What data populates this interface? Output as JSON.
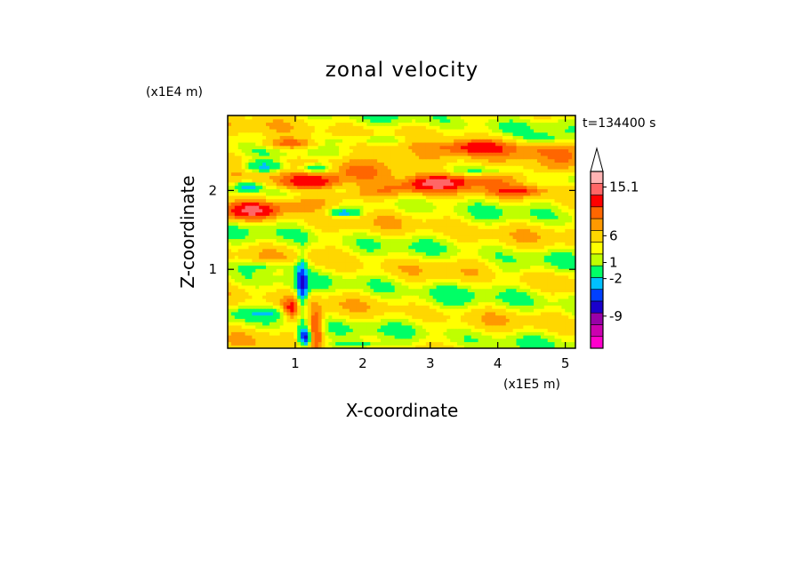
{
  "chart_data": {
    "type": "heatmap",
    "title": "zonal velocity",
    "xlabel": "X-coordinate",
    "ylabel": "Z-coordinate",
    "x_scale_label": "(x1E5 m)",
    "y_scale_label": "(x1E4 m)",
    "time_label": "t=134400 s",
    "xlim": [
      0,
      5.15
    ],
    "ylim": [
      0,
      2.95
    ],
    "x_ticks": [
      "1",
      "2",
      "3",
      "4",
      "5"
    ],
    "y_ticks": [
      "1",
      "2"
    ],
    "colorbar": {
      "labels": [
        "15.1",
        "6",
        "1",
        "-2",
        "-9"
      ],
      "label_values": [
        15.1,
        6,
        1,
        -2,
        -9
      ],
      "colors_bottom_to_top": [
        "#ff00cc",
        "#cc00b0",
        "#9900a8",
        "#1a00cc",
        "#0040ff",
        "#00c0ff",
        "#00ff66",
        "#bfff00",
        "#ffff00",
        "#ffd700",
        "#ff9900",
        "#ff6600",
        "#ff0000",
        "#ff6666",
        "#ffb3b3"
      ],
      "extend_top": true,
      "range": [
        -15,
        18
      ]
    },
    "color_scale": [
      {
        "v": -12,
        "c": "#cc00b0"
      },
      {
        "v": -9,
        "c": "#9900a8"
      },
      {
        "v": -6,
        "c": "#1a00cc"
      },
      {
        "v": -4,
        "c": "#0040ff"
      },
      {
        "v": -2,
        "c": "#00c0ff"
      },
      {
        "v": 0,
        "c": "#00ff66"
      },
      {
        "v": 1,
        "c": "#bfff00"
      },
      {
        "v": 2,
        "c": "#ffff00"
      },
      {
        "v": 3.5,
        "c": "#ffd700"
      },
      {
        "v": 5,
        "c": "#ff9900"
      },
      {
        "v": 7,
        "c": "#ff6600"
      },
      {
        "v": 10,
        "c": "#ff0000"
      },
      {
        "v": 99,
        "c": "#ff6666"
      }
    ],
    "features": [
      {
        "x": 2.5,
        "z": 2.35,
        "sx": 3.2,
        "sz": 0.18,
        "v": 3,
        "tilt": 0.08
      },
      {
        "x": 2.6,
        "z": 2.02,
        "sx": 3.0,
        "sz": 0.11,
        "v": 3.5,
        "tilt": 0.12
      },
      {
        "x": 1.2,
        "z": 2.1,
        "sx": 0.4,
        "sz": 0.08,
        "v": 5.5,
        "tilt": 0
      },
      {
        "x": 0.35,
        "z": 1.75,
        "sx": 0.3,
        "sz": 0.1,
        "v": 6,
        "tilt": 0
      },
      {
        "x": 3.7,
        "z": 2.55,
        "sx": 0.45,
        "sz": 0.08,
        "v": 5,
        "tilt": 0
      },
      {
        "x": 0.9,
        "z": 2.6,
        "sx": 0.45,
        "sz": 0.07,
        "v": 5,
        "tilt": 0
      },
      {
        "x": 3.1,
        "z": 2.1,
        "sx": 0.35,
        "sz": 0.08,
        "v": 5.5,
        "tilt": 0
      },
      {
        "x": 4.3,
        "z": 2.0,
        "sx": 0.4,
        "sz": 0.07,
        "v": 5,
        "tilt": 0
      },
      {
        "x": 1.3,
        "z": 0.25,
        "sx": 0.1,
        "sz": 0.25,
        "v": 6.5,
        "tilt": 0
      },
      {
        "x": 0.95,
        "z": 0.5,
        "sx": 0.12,
        "sz": 0.12,
        "v": 6,
        "tilt": 0
      },
      {
        "x": 0.55,
        "z": 2.3,
        "sx": 0.35,
        "sz": 0.08,
        "v": -6,
        "tilt": 0
      },
      {
        "x": 1.3,
        "z": 2.28,
        "sx": 0.3,
        "sz": 0.07,
        "v": -6.5,
        "tilt": 0
      },
      {
        "x": 0.3,
        "z": 2.05,
        "sx": 0.2,
        "sz": 0.07,
        "v": -5,
        "tilt": 0
      },
      {
        "x": 1.7,
        "z": 1.72,
        "sx": 0.25,
        "sz": 0.05,
        "v": -5,
        "tilt": 0
      },
      {
        "x": 3.9,
        "z": 2.25,
        "sx": 0.5,
        "sz": 0.06,
        "v": -3,
        "tilt": 0
      },
      {
        "x": 2.3,
        "z": 2.65,
        "sx": 0.8,
        "sz": 0.06,
        "v": -2.5,
        "tilt": 0
      },
      {
        "x": 4.7,
        "z": 2.65,
        "sx": 0.35,
        "sz": 0.08,
        "v": -3,
        "tilt": 0
      },
      {
        "x": 1.1,
        "z": 0.8,
        "sx": 0.08,
        "sz": 0.35,
        "v": -7,
        "tilt": 0
      },
      {
        "x": 1.15,
        "z": 0.15,
        "sx": 0.1,
        "sz": 0.12,
        "v": -10,
        "tilt": 0
      },
      {
        "x": 0.65,
        "z": 1.05,
        "sx": 0.45,
        "sz": 0.06,
        "v": -2.5,
        "tilt": 0
      },
      {
        "x": 0.55,
        "z": 0.45,
        "sx": 0.4,
        "sz": 0.07,
        "v": -2.5,
        "tilt": 0
      },
      {
        "x": 2.0,
        "z": 0.05,
        "sx": 0.5,
        "sz": 0.05,
        "v": -3,
        "tilt": 0
      },
      {
        "x": 3.1,
        "z": 0.55,
        "sx": 0.45,
        "sz": 0.25,
        "v": -0.7,
        "tilt": 0
      },
      {
        "x": 4.2,
        "z": 1.0,
        "sx": 0.55,
        "sz": 0.12,
        "v": -0.6,
        "tilt": 0.3
      },
      {
        "x": 4.5,
        "z": 0.6,
        "sx": 0.5,
        "sz": 0.2,
        "v": -0.6,
        "tilt": 0
      },
      {
        "x": 2.3,
        "z": 0.8,
        "sx": 0.35,
        "sz": 0.15,
        "v": -0.5,
        "tilt": 0
      }
    ]
  }
}
